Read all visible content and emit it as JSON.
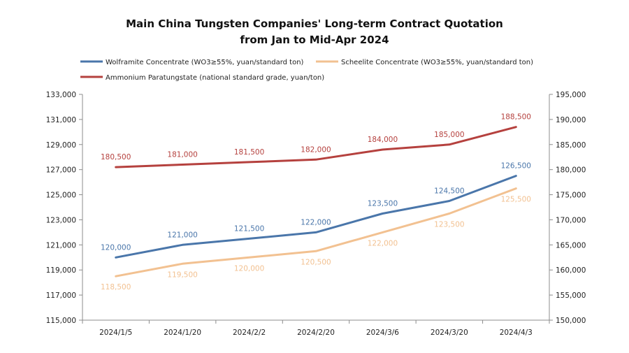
{
  "chart_data": {
    "type": "line",
    "title_line1": "Main China Tungsten Companies' Long-term Contract Quotation",
    "title_line2": "from Jan to Mid-Apr 2024",
    "categories": [
      "2024/1/5",
      "2024/1/20",
      "2024/2/2",
      "2024/2/20",
      "2024/3/6",
      "2024/3/20",
      "2024/4/3"
    ],
    "left_axis": {
      "ylim": [
        115000,
        133000
      ],
      "ticks": [
        "115,000",
        "117,000",
        "119,000",
        "121,000",
        "123,000",
        "125,000",
        "127,000",
        "129,000",
        "131,000",
        "133,000"
      ],
      "tick_values": [
        115000,
        117000,
        119000,
        121000,
        123000,
        125000,
        127000,
        129000,
        131000,
        133000
      ]
    },
    "right_axis": {
      "ylim": [
        150000,
        195000
      ],
      "ticks": [
        "150,000",
        "155,000",
        "160,000",
        "165,000",
        "170,000",
        "175,000",
        "180,000",
        "185,000",
        "190,000",
        "195,000"
      ],
      "tick_values": [
        150000,
        155000,
        160000,
        165000,
        170000,
        175000,
        180000,
        185000,
        190000,
        195000
      ]
    },
    "legend_placement": "top",
    "grid": false,
    "series": [
      {
        "name": "Wolframite Concentrate (WO3≥55%, yuan/standard ton)",
        "axis": "left",
        "color": "#4a76aa",
        "values": [
          120000,
          121000,
          121500,
          122000,
          123500,
          124500,
          126500
        ],
        "labels": [
          "120,000",
          "121,000",
          "121,500",
          "122,000",
          "123,500",
          "124,500",
          "126,500"
        ]
      },
      {
        "name": "Scheelite Concentrate (WO3≥55%, yuan/standard ton)",
        "axis": "left",
        "color": "#f2c191",
        "values": [
          118500,
          119500,
          120000,
          120500,
          122000,
          123500,
          125500
        ],
        "labels": [
          "118,500",
          "119,500",
          "120,000",
          "120,500",
          "122,000",
          "123,500",
          "125,500"
        ]
      },
      {
        "name": "Ammonium Paratungstate (national standard grade, yuan/ton)",
        "axis": "right",
        "color": "#b5413e",
        "values": [
          180500,
          181000,
          181500,
          182000,
          184000,
          185000,
          188500
        ],
        "labels": [
          "180,500",
          "181,000",
          "181,500",
          "182,000",
          "184,000",
          "185,000",
          "188,500"
        ]
      }
    ]
  }
}
